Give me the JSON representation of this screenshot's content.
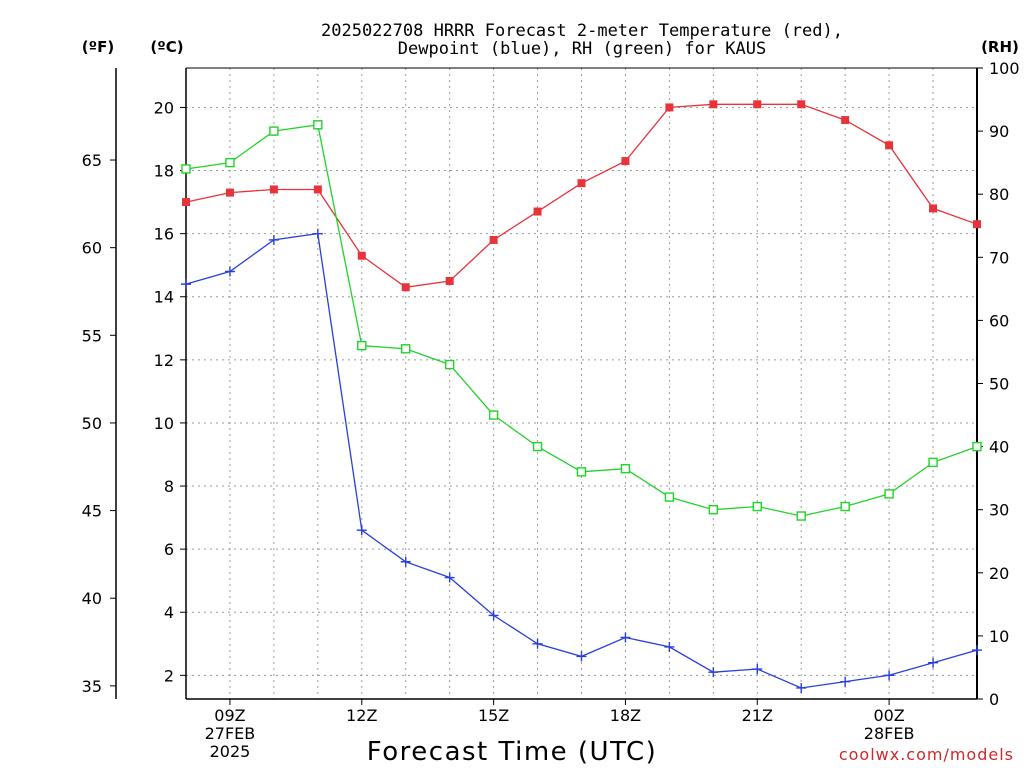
{
  "chart_data": {
    "type": "line",
    "title": "2025022708 HRRR Forecast 2-meter Temperature (red),",
    "subtitle": "Dewpoint (blue), RH (green) for KAUS",
    "xlabel": "Forecast Time (UTC)",
    "left_unit_f": "(ºF)",
    "left_unit_c": "(ºC)",
    "right_unit": "(RH)",
    "watermark": "coolwx.com/models",
    "x": [
      8,
      9,
      10,
      11,
      12,
      13,
      14,
      15,
      16,
      17,
      18,
      19,
      20,
      21,
      22,
      23,
      24,
      25,
      26
    ],
    "xlim": [
      8,
      26
    ],
    "x_ticks": [
      {
        "x": 9,
        "lines": [
          "09Z",
          "27FEB",
          "2025"
        ]
      },
      {
        "x": 12,
        "lines": [
          "12Z"
        ]
      },
      {
        "x": 15,
        "lines": [
          "15Z"
        ]
      },
      {
        "x": 18,
        "lines": [
          "18Z"
        ]
      },
      {
        "x": 21,
        "lines": [
          "21Z"
        ]
      },
      {
        "x": 24,
        "lines": [
          "00Z",
          "28FEB"
        ]
      }
    ],
    "ylim_c": [
      1.25,
      21.25
    ],
    "y_ticks_c": [
      2,
      4,
      6,
      8,
      10,
      12,
      14,
      16,
      18,
      20
    ],
    "y_ticks_f": [
      35,
      40,
      45,
      50,
      55,
      60,
      65
    ],
    "ylim_rh": [
      0,
      100
    ],
    "y_ticks_rh": [
      0,
      10,
      20,
      30,
      40,
      50,
      60,
      70,
      80,
      90,
      100
    ],
    "grid": true,
    "series": [
      {
        "name": "Temperature",
        "axis": "c",
        "color": "#e8333a",
        "marker": "filled-square",
        "values": [
          17.0,
          17.3,
          17.4,
          17.4,
          15.3,
          14.3,
          14.5,
          15.8,
          16.7,
          17.6,
          18.3,
          20.0,
          20.1,
          20.1,
          20.1,
          19.6,
          18.8,
          16.8,
          16.3
        ]
      },
      {
        "name": "Dewpoint",
        "axis": "c",
        "color": "#2a3fd8",
        "marker": "plus",
        "values": [
          14.4,
          14.8,
          15.8,
          16.0,
          6.6,
          5.6,
          5.1,
          3.9,
          3.0,
          2.6,
          3.2,
          2.9,
          2.1,
          2.2,
          1.6,
          1.8,
          2.0,
          2.4,
          2.8
        ]
      },
      {
        "name": "RH",
        "axis": "rh",
        "color": "#22d32a",
        "marker": "open-square",
        "values": [
          84,
          85,
          90,
          91,
          56,
          55.5,
          53,
          45,
          40,
          36,
          36.5,
          32,
          30,
          30.5,
          29,
          30.5,
          32.5,
          37.5,
          40
        ]
      }
    ]
  }
}
